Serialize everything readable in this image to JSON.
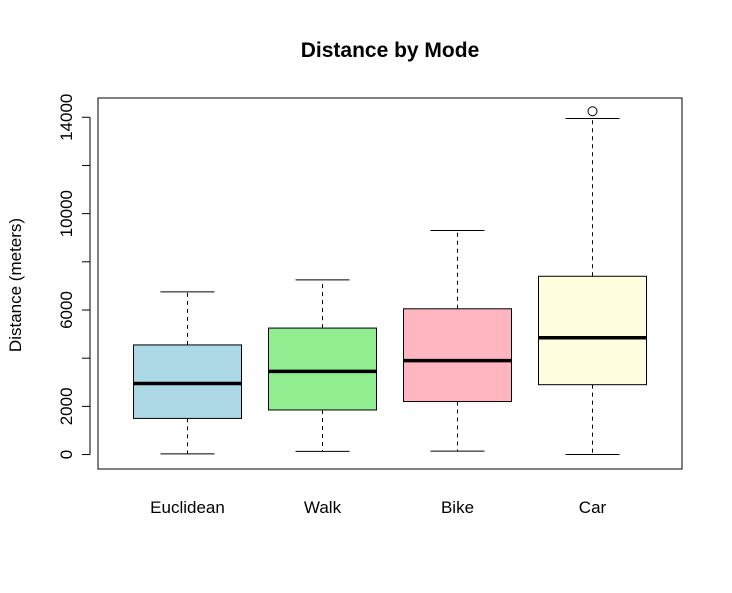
{
  "chart_data": {
    "type": "boxplot",
    "title": "Distance by Mode",
    "xlabel": "",
    "ylabel": "Distance (meters)",
    "ylim": [
      -600,
      14800
    ],
    "yticks": [
      0,
      2000,
      4000,
      6000,
      8000,
      10000,
      12000,
      14000
    ],
    "ytick_labels": [
      "0",
      "2000",
      "",
      "6000",
      "",
      "10000",
      "",
      "14000"
    ],
    "categories": [
      "Euclidean",
      "Walk",
      "Bike",
      "Car"
    ],
    "colors": [
      "#add8e6",
      "#90ee90",
      "#ffb6c1",
      "#ffffe0"
    ],
    "boxes": [
      {
        "name": "Euclidean",
        "whisker_low": 30,
        "q1": 1500,
        "median": 2950,
        "q3": 4550,
        "whisker_high": 6750,
        "outliers": []
      },
      {
        "name": "Walk",
        "whisker_low": 130,
        "q1": 1850,
        "median": 3450,
        "q3": 5250,
        "whisker_high": 7250,
        "outliers": []
      },
      {
        "name": "Bike",
        "whisker_low": 140,
        "q1": 2200,
        "median": 3900,
        "q3": 6050,
        "whisker_high": 9300,
        "outliers": []
      },
      {
        "name": "Car",
        "whisker_low": 0,
        "q1": 2900,
        "median": 4850,
        "q3": 7400,
        "whisker_high": 13950,
        "outliers": [
          14250
        ]
      }
    ],
    "grid": false,
    "legend": "none"
  }
}
